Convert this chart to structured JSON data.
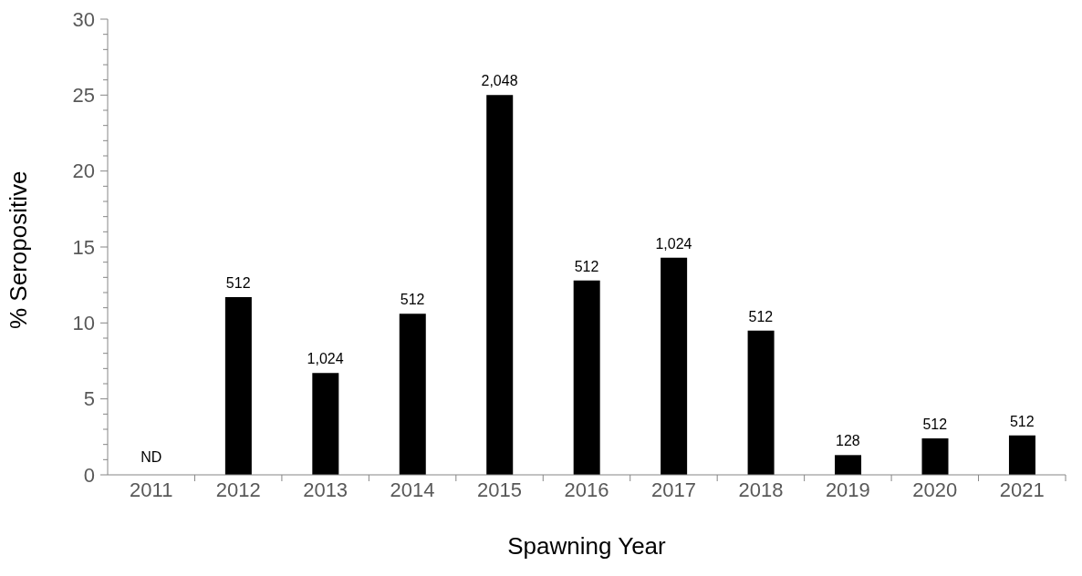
{
  "chart_data": {
    "type": "bar",
    "xlabel": "Spawning Year",
    "ylabel": "% Seropositive",
    "categories": [
      "2011",
      "2012",
      "2013",
      "2014",
      "2015",
      "2016",
      "2017",
      "2018",
      "2019",
      "2020",
      "2021"
    ],
    "values": [
      null,
      11.7,
      6.7,
      10.6,
      25,
      12.8,
      14.3,
      9.5,
      1.3,
      2.4,
      2.6
    ],
    "annotations": [
      "ND",
      {
        "text": "512",
        "x": "2012",
        "y": 11.7
      },
      {
        "text": "1,024",
        "x": "2013",
        "y": 6.7
      },
      {
        "text": "512",
        "x": "2014",
        "y": 10.6
      },
      {
        "text": "2,048",
        "x": "2015",
        "y": 25
      },
      {
        "text": "512",
        "x": "2016",
        "y": 12.8
      },
      {
        "text": "1,024",
        "x": "2017",
        "y": 14.3
      },
      {
        "text": "512",
        "x": "2018",
        "y": 9.5
      },
      {
        "text": "128",
        "x": "2019",
        "y": 1.3
      },
      {
        "text": "512",
        "x": "2020",
        "y": 2.4
      },
      {
        "text": "512",
        "x": "2021",
        "y": 2.6
      }
    ],
    "color": "#000000",
    "ylim": [
      0,
      30
    ],
    "yticks": [
      0,
      {
        "value": 1,
        "label": null
      },
      {
        "value": 2,
        "label": null
      },
      {
        "value": 3,
        "label": null
      },
      {
        "value": 4,
        "label": null
      },
      5,
      {
        "value": 6,
        "label": null
      },
      {
        "value": 7,
        "label": null
      },
      {
        "value": 8,
        "label": null
      },
      {
        "value": 9,
        "label": null
      },
      10,
      {
        "value": 11,
        "label": null
      },
      {
        "value": 12,
        "label": null
      },
      {
        "value": 13,
        "label": null
      },
      {
        "value": 14,
        "label": null
      },
      15,
      {
        "value": 16,
        "label": null
      },
      {
        "value": 17,
        "label": null
      },
      {
        "value": 18,
        "label": null
      },
      {
        "value": 19,
        "label": null
      },
      20,
      {
        "value": 21,
        "label": null
      },
      {
        "value": 22,
        "label": null
      },
      {
        "value": 23,
        "label": null
      },
      {
        "value": 24,
        "label": null
      },
      25,
      {
        "value": 26,
        "label": null
      },
      {
        "value": 27,
        "label": null
      },
      {
        "value": 28,
        "label": null
      },
      {
        "value": 29,
        "label": null
      },
      30
    ],
    "grid": false,
    "legend": false
  }
}
